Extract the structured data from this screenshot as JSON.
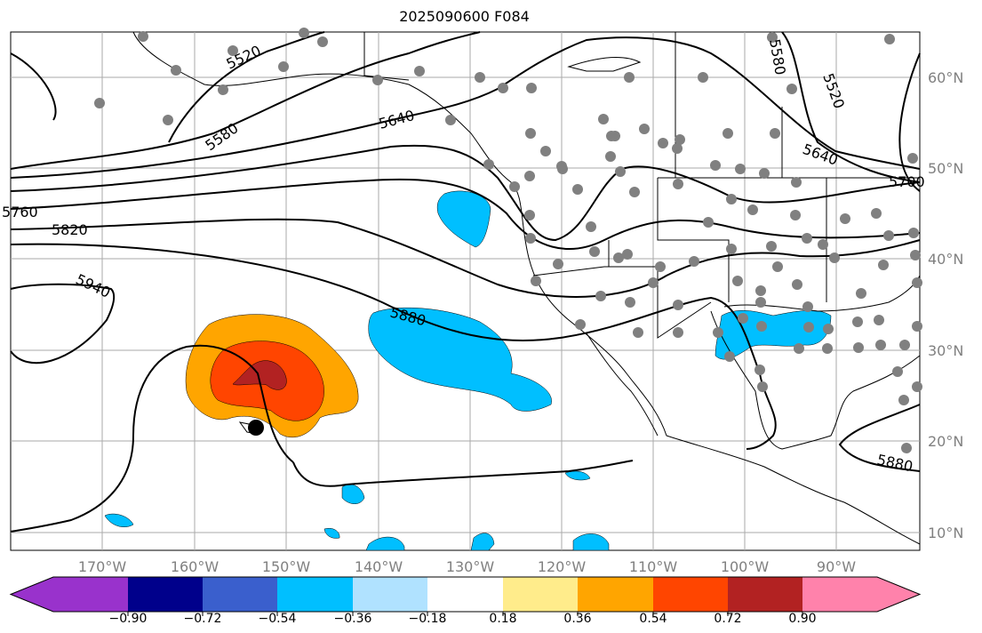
{
  "title": "2025090600 F084",
  "x_ticks": [
    "170°W",
    "160°W",
    "150°W",
    "140°W",
    "130°W",
    "120°W",
    "110°W",
    "100°W",
    "90°W"
  ],
  "y_ticks": [
    "60°N",
    "50°N",
    "40°N",
    "30°N",
    "20°N",
    "10°N"
  ],
  "contour_labels": [
    "5520",
    "5580",
    "5640",
    "5640",
    "5700",
    "5760",
    "5820",
    "5880",
    "5880",
    "5940",
    "5580",
    "5520"
  ],
  "colorbar": {
    "ticks": [
      "−0.90",
      "−0.72",
      "−0.54",
      "−0.36",
      "−0.18",
      "0.18",
      "0.36",
      "0.54",
      "0.72",
      "0.90"
    ],
    "colors": [
      "#9932cc",
      "#00008b",
      "#3a5fcd",
      "#00bfff",
      "#b0e2ff",
      "#ffffff",
      "#ffec8b",
      "#ffa500",
      "#ff4500",
      "#b22222",
      "#ff82ab"
    ]
  },
  "chart_data": {
    "type": "contour-map",
    "title": "2025090600 F084",
    "contour_levels": [
      5520,
      5580,
      5640,
      5700,
      5760,
      5820,
      5880,
      5940
    ],
    "shading_bounds": [
      -0.9,
      -0.72,
      -0.54,
      -0.36,
      -0.18,
      0.18,
      0.36,
      0.54,
      0.72,
      0.9
    ],
    "lon_range": [
      "180°W",
      "80°W"
    ],
    "lat_range": [
      "8°N",
      "65°N"
    ]
  }
}
